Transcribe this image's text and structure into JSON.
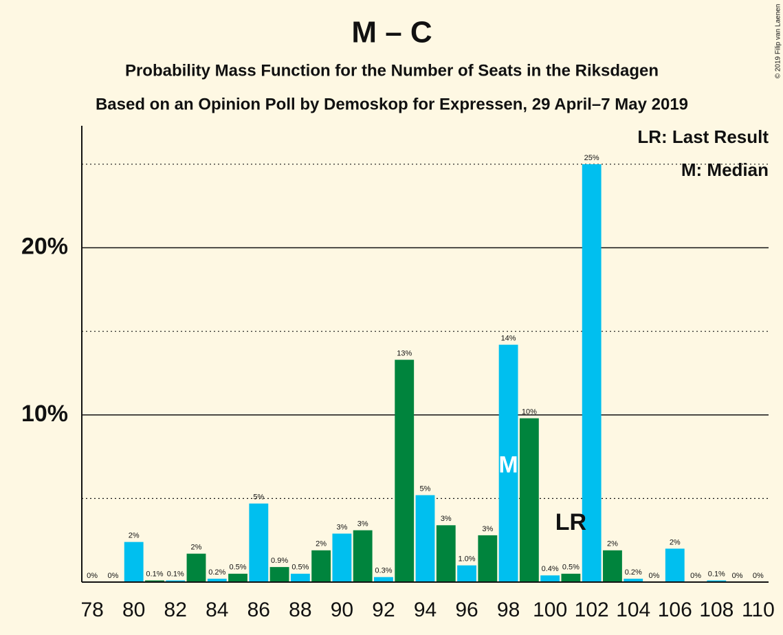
{
  "chart_data": {
    "type": "bar",
    "title": "M – C",
    "subtitle": "Probability Mass Function for the Number of Seats in the Riksdagen",
    "subtitle2": "Based on an Opinion Poll by Demoskop for Expressen, 29 April–7 May 2019",
    "copyright": "© 2019 Filip van Laenen",
    "x": [
      78,
      79,
      80,
      81,
      82,
      83,
      84,
      85,
      86,
      87,
      88,
      89,
      90,
      91,
      92,
      93,
      94,
      95,
      96,
      97,
      98,
      99,
      100,
      101,
      102,
      103,
      104,
      105,
      106,
      107,
      108,
      109,
      110
    ],
    "values": [
      0,
      0,
      2.4,
      0.1,
      0.1,
      1.7,
      0.2,
      0.5,
      4.7,
      0.9,
      0.5,
      1.9,
      2.9,
      3.1,
      0.3,
      13.3,
      5.2,
      3.4,
      1.0,
      2.8,
      14.2,
      9.8,
      0.4,
      0.5,
      25.0,
      1.9,
      0.2,
      0,
      2.0,
      0,
      0.1,
      0,
      0
    ],
    "value_labels": [
      "0%",
      "0%",
      "2%",
      "0.1%",
      "0.1%",
      "2%",
      "0.2%",
      "0.5%",
      "5%",
      "0.9%",
      "0.5%",
      "2%",
      "3%",
      "3%",
      "0.3%",
      "13%",
      "5%",
      "3%",
      "1.0%",
      "3%",
      "14%",
      "10%",
      "0.4%",
      "0.5%",
      "25%",
      "2%",
      "0.2%",
      "0%",
      "2%",
      "0%",
      "0.1%",
      "0%",
      "0%"
    ],
    "colors": [
      "#00bfef",
      "#00843d",
      "#00bfef",
      "#00843d",
      "#00bfef",
      "#00843d",
      "#00bfef",
      "#00843d",
      "#00bfef",
      "#00843d",
      "#00bfef",
      "#00843d",
      "#00bfef",
      "#00843d",
      "#00bfef",
      "#00843d",
      "#00bfef",
      "#00843d",
      "#00bfef",
      "#00843d",
      "#00bfef",
      "#00843d",
      "#00bfef",
      "#00843d",
      "#00bfef",
      "#00843d",
      "#00bfef",
      "#00843d",
      "#00bfef",
      "#00843d",
      "#00bfef",
      "#00843d",
      "#00bfef"
    ],
    "xlim": [
      77.5,
      110.5
    ],
    "xticks": [
      78,
      80,
      82,
      84,
      86,
      88,
      90,
      92,
      94,
      96,
      98,
      100,
      102,
      104,
      106,
      108,
      110
    ],
    "ylim": [
      0,
      27.3
    ],
    "yticks": [
      {
        "value": 10,
        "label": "10%"
      },
      {
        "value": 20,
        "label": "20%"
      }
    ],
    "minor_yticks": [
      5,
      15,
      25
    ],
    "grid": true,
    "median": {
      "x": 98,
      "label": "M"
    },
    "last_result": {
      "x": 101,
      "label": "LR"
    },
    "legend": [
      "LR: Last Result",
      "M: Median"
    ]
  }
}
